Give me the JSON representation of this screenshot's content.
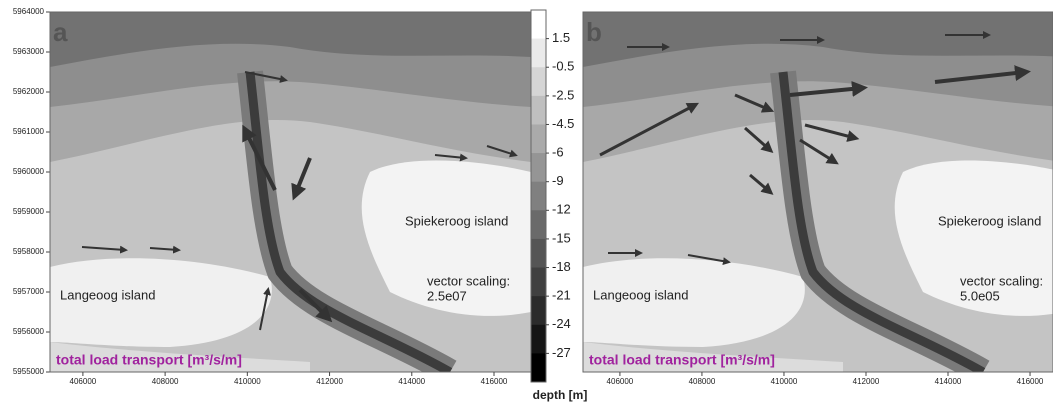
{
  "y_axis": {
    "ylim": [
      5955000,
      5964000
    ],
    "yticks": [
      5955000,
      5956000,
      5957000,
      5958000,
      5959000,
      5960000,
      5961000,
      5962000,
      5963000,
      5964000
    ]
  },
  "panels": [
    {
      "label": "a",
      "xlim": [
        405200,
        416900
      ],
      "xticks": [
        406000,
        408000,
        410000,
        412000,
        414000,
        416000
      ],
      "island_east": "Spiekeroog island",
      "island_west": "Langeoog island",
      "vector_scaling": "vector scaling:",
      "vector_scale": "2.5e07",
      "legend": "total load transport [m³/s/m]"
    },
    {
      "label": "b",
      "xlim": [
        405100,
        416560
      ],
      "xticks": [
        406000,
        408000,
        410000,
        412000,
        414000,
        416000
      ],
      "island_east": "Spiekeroog island",
      "island_west": "Langeoog island",
      "vector_scaling": "vector scaling:",
      "vector_scale": "5.0e05",
      "legend": "total load transport [m³/s/m]"
    }
  ],
  "colorbar": {
    "levels": [
      1.5,
      -0.5,
      -2.5,
      -4.5,
      -6,
      -9,
      -12,
      -15,
      -18,
      -21,
      -24,
      -27
    ],
    "label": "depth [m]"
  }
}
